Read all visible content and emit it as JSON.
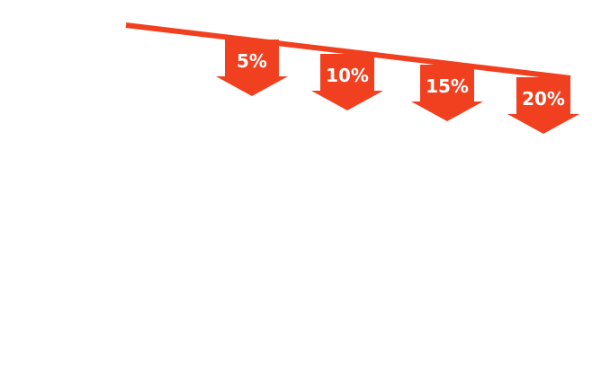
{
  "diagram": {
    "accent_color": "#F0401F",
    "background_color": "#FFFFFF",
    "label_color": "#FFFFFF",
    "arrow_icon": "arrow-down-icon",
    "steps": [
      {
        "label": "5%"
      },
      {
        "label": "10%"
      },
      {
        "label": "15%"
      },
      {
        "label": "20%"
      }
    ]
  }
}
